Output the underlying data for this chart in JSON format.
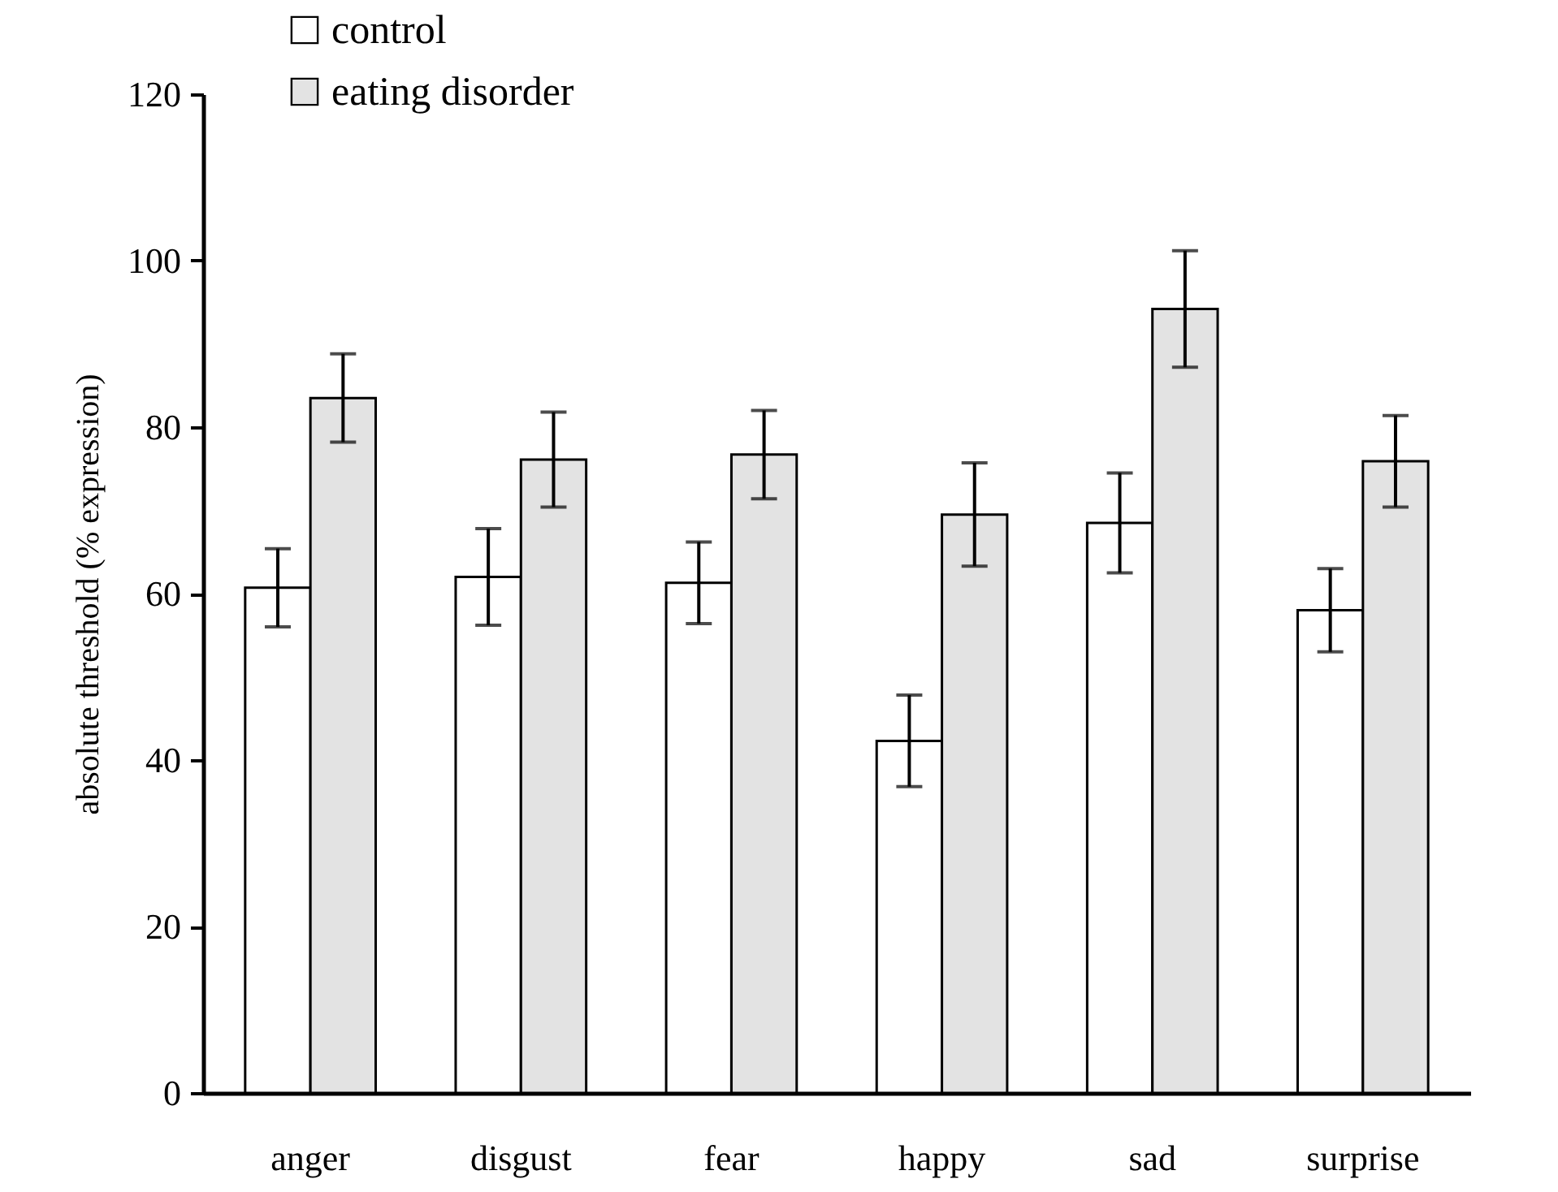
{
  "chart_data": {
    "type": "bar",
    "ylabel": "absolute threshold (% expression)",
    "categories": [
      "anger",
      "disgust",
      "fear",
      "happy",
      "sad",
      "surprise"
    ],
    "series": [
      {
        "name": "control",
        "color": "#ffffff",
        "values": [
          60.7,
          62.0,
          61.3,
          42.3,
          68.5,
          58.0
        ],
        "errors": [
          4.7,
          5.8,
          4.9,
          5.5,
          6.0,
          5.0
        ]
      },
      {
        "name": "eating disorder",
        "color": "#e3e3e3",
        "values": [
          83.5,
          76.1,
          76.7,
          69.5,
          94.2,
          75.9
        ],
        "errors": [
          5.3,
          5.7,
          5.3,
          6.2,
          7.0,
          5.5
        ]
      }
    ],
    "ylim": [
      0,
      120
    ],
    "yticks": [
      0,
      20,
      40,
      60,
      80,
      100,
      120
    ],
    "grid": false,
    "legend": "top left"
  }
}
